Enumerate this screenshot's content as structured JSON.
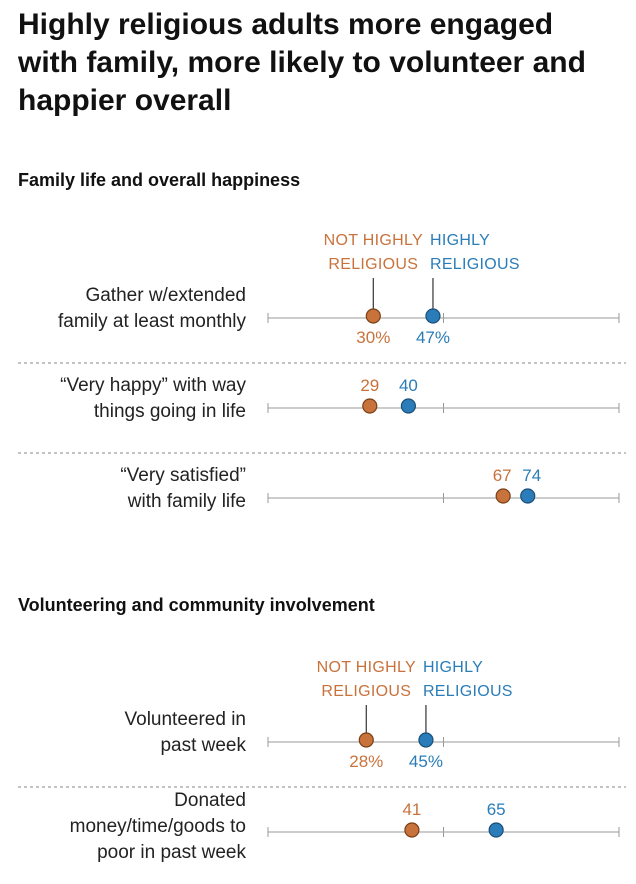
{
  "title": "Highly religious adults more engaged with family, more likely to volunteer and happier overall",
  "colors": {
    "not_highly": "#c8723c",
    "highly": "#2a7db8",
    "axis": "#999999",
    "divider": "#888888"
  },
  "chart_data": [
    {
      "type": "dot",
      "subtitle": "Family life and overall happiness",
      "xlim": [
        0,
        100
      ],
      "series": [
        {
          "key": "not_highly",
          "legend_lines": [
            "NOT HIGHLY",
            "RELIGIOUS"
          ]
        },
        {
          "key": "highly",
          "legend_lines": [
            "HIGHLY",
            "RELIGIOUS"
          ]
        }
      ],
      "rows": [
        {
          "label_lines": [
            "Gather w/extended",
            "family at least monthly"
          ],
          "not_highly": 30,
          "highly": 47,
          "value_labels": [
            "30%",
            "47%"
          ],
          "labels_below": true
        },
        {
          "label_lines": [
            "“Very happy” with way",
            "things going in life"
          ],
          "not_highly": 29,
          "highly": 40,
          "value_labels": [
            "29",
            "40"
          ],
          "labels_below": false
        },
        {
          "label_lines": [
            "“Very satisfied”",
            "with family life"
          ],
          "not_highly": 67,
          "highly": 74,
          "value_labels": [
            "67",
            "74"
          ],
          "labels_below": false
        }
      ]
    },
    {
      "type": "dot",
      "subtitle": "Volunteering and community involvement",
      "xlim": [
        0,
        100
      ],
      "series": [
        {
          "key": "not_highly",
          "legend_lines": [
            "NOT HIGHLY",
            "RELIGIOUS"
          ]
        },
        {
          "key": "highly",
          "legend_lines": [
            "HIGHLY",
            "RELIGIOUS"
          ]
        }
      ],
      "rows": [
        {
          "label_lines": [
            "Volunteered in",
            "past week"
          ],
          "not_highly": 28,
          "highly": 45,
          "value_labels": [
            "28%",
            "45%"
          ],
          "labels_below": true
        },
        {
          "label_lines": [
            "Donated",
            "money/time/goods to",
            "poor in past week"
          ],
          "not_highly": 41,
          "highly": 65,
          "value_labels": [
            "41",
            "65"
          ],
          "labels_below": false
        }
      ]
    }
  ]
}
